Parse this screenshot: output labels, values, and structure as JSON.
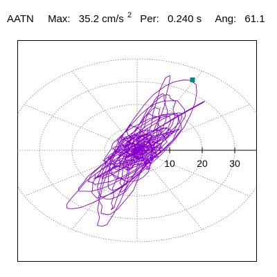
{
  "header": {
    "station": "AATN",
    "max_label": "Max:",
    "max_value": "35.2 cm/s",
    "max_superscript": "2",
    "per_label": "Per:",
    "per_value": "0.240 s",
    "ang_label": "Ang:",
    "ang_value": "61.1"
  },
  "colors": {
    "trace": "#8800cc",
    "peak_marker": "#008878",
    "grid": "#808080",
    "axis": "#000000"
  },
  "chart_data": {
    "type": "scatter",
    "subtype": "polar particle-motion trace",
    "title": "",
    "units": "cm/s²",
    "radial_rings": [
      10,
      20,
      30,
      40
    ],
    "angular_spokes_deg": [
      0,
      30,
      60,
      90,
      120,
      150,
      180,
      210,
      240,
      270,
      300,
      330
    ],
    "tick_labels": [
      "10",
      "20",
      "30"
    ],
    "tick_values": [
      10,
      20,
      30
    ],
    "peak": {
      "amplitude": 35.2,
      "angle_deg": 61.1
    },
    "period_s": 0.24,
    "trace_dominant_angle_deg": 61.1,
    "trace_max_amplitude": 35.2,
    "grid": true
  }
}
